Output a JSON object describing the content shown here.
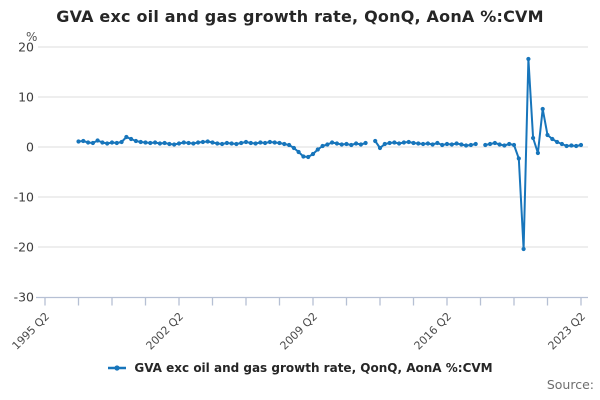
{
  "chart": {
    "title": "GVA exc oil and gas growth rate, QonQ, AonA %:CVM",
    "legend_label": "GVA exc oil and gas growth rate, QonQ, AonA %:CVM",
    "source_label": "Source:",
    "y_axis": {
      "unit_label": "%",
      "ticks": [
        20,
        10,
        0,
        -10,
        -20,
        -30
      ],
      "range": [
        -30,
        20
      ]
    },
    "x_axis": {
      "labeled_ticks": [
        "1995 Q2",
        "2002 Q2",
        "2009 Q2",
        "2016 Q2",
        "2023 Q2"
      ],
      "minor_ticks_between_labels": 3
    }
  },
  "chart_data": {
    "type": "line",
    "title": "GVA exc oil and gas growth rate, QonQ, AonA %:CVM",
    "xlabel": "",
    "ylabel": "%",
    "ylim": [
      -30,
      20
    ],
    "xlim_labels": [
      "1995 Q2",
      "2023 Q2"
    ],
    "y_ticks": [
      20,
      10,
      0,
      -10,
      -20,
      -30
    ],
    "x_tick_labels": [
      "1995 Q2",
      "2002 Q2",
      "2009 Q2",
      "2016 Q2",
      "2023 Q2"
    ],
    "grid": "horizontal",
    "legend_position": "bottom",
    "marker": "circle",
    "colors": {
      "line": "#1775bb"
    },
    "series": [
      {
        "name": "GVA exc oil and gas growth rate, QonQ, AonA %:CVM",
        "frequency": "quarterly",
        "start": "1997 Q1",
        "end": "2023 Q2",
        "gaps": [
          "2012 Q2",
          "2018 Q1"
        ],
        "values": [
          1.1,
          1.2,
          0.9,
          0.8,
          1.3,
          0.9,
          0.7,
          0.9,
          0.8,
          1.0,
          2.0,
          1.6,
          1.2,
          1.0,
          0.9,
          0.8,
          0.9,
          0.7,
          0.8,
          0.6,
          0.5,
          0.7,
          0.9,
          0.8,
          0.7,
          0.9,
          1.0,
          1.1,
          0.9,
          0.7,
          0.6,
          0.8,
          0.7,
          0.6,
          0.8,
          1.0,
          0.8,
          0.7,
          0.9,
          0.8,
          1.0,
          0.9,
          0.8,
          0.6,
          0.4,
          -0.2,
          -1.0,
          -1.9,
          -2.0,
          -1.4,
          -0.5,
          0.2,
          0.5,
          0.9,
          0.7,
          0.5,
          0.6,
          0.4,
          0.7,
          0.5,
          0.8,
          null,
          1.2,
          -0.2,
          0.6,
          0.8,
          0.9,
          0.7,
          0.9,
          1.0,
          0.8,
          0.7,
          0.6,
          0.7,
          0.5,
          0.8,
          0.4,
          0.6,
          0.5,
          0.7,
          0.5,
          0.3,
          0.4,
          0.6,
          null,
          0.4,
          0.6,
          0.8,
          0.5,
          0.3,
          0.6,
          0.4,
          -2.3,
          -20.4,
          17.6,
          1.8,
          -1.2,
          7.6,
          2.4,
          1.6,
          1.0,
          0.6,
          0.2,
          0.3,
          0.2,
          0.4
        ]
      }
    ]
  }
}
